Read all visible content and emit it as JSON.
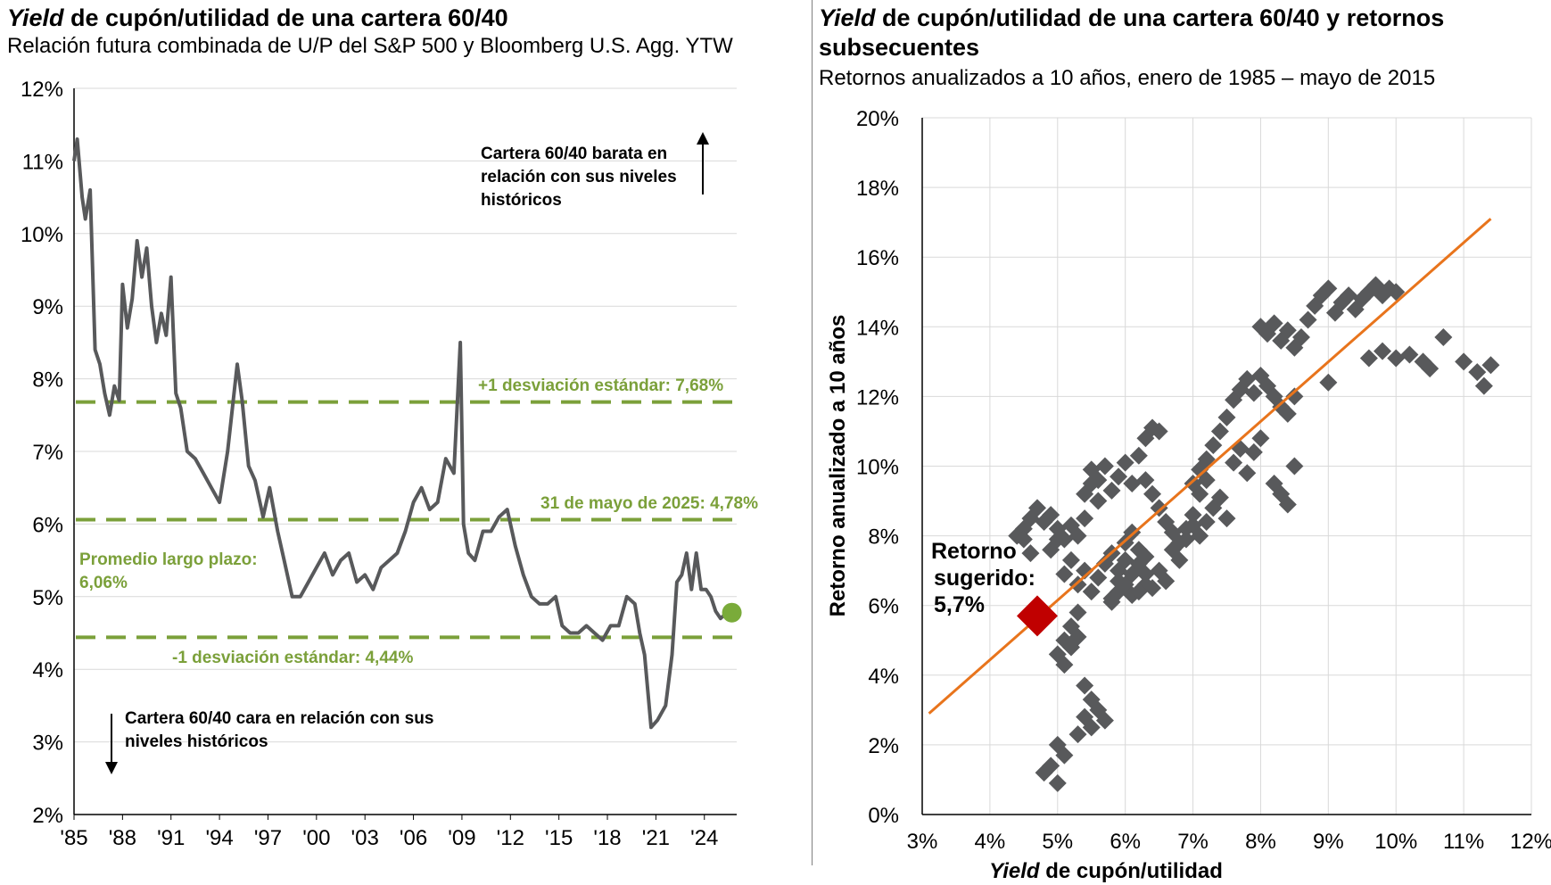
{
  "left_chart": {
    "title_italic": "Yield",
    "title_rest": " de cupón/utilidad de una cartera 60/40",
    "subtitle": "Relación futura combinada de U/P del S&P 500 y Bloomberg U.S. Agg. YTW",
    "annotation_cheap": [
      "Cartera 60/40 barata en",
      "relación con sus niveles",
      "históricos"
    ],
    "annotation_expensive": [
      "Cartera 60/40 cara en relación con sus",
      "niveles históricos"
    ],
    "label_plus1": "+1 desviación estándar: 7,68%",
    "label_current": "31 de mayo de 2025: 4,78%",
    "label_avg": [
      "Promedio largo plazo:",
      "6,06%"
    ],
    "label_minus1": "-1 desviación estándar: 4,44%"
  },
  "right_chart": {
    "title_italic": "Yield",
    "title_rest": " de cupón/utilidad de una cartera 60/40 y retornos subsecuentes",
    "subtitle": "Retornos anualizados a 10 años, enero de 1985 – mayo de 2015",
    "ylabel": "Retorno anualizado a 10 años",
    "xlabel_italic": "Yield",
    "xlabel_rest": " de cupón/utilidad",
    "suggested_label": [
      "Retorno",
      "sugerido:",
      "5,7%"
    ]
  },
  "colors": {
    "line": "#58595b",
    "green": "#7ba03a",
    "orange": "#e8741c",
    "red": "#c00000",
    "scatter": "#58595b"
  },
  "chart_data": [
    {
      "type": "line",
      "title": "Yield de cupón/utilidad de una cartera 60/40",
      "subtitle": "Relación futura combinada de U/P del S&P 500 y Bloomberg U.S. Agg. YTW",
      "x_tick_labels": [
        "'85",
        "'88",
        "'91",
        "'94",
        "'97",
        "'00",
        "'03",
        "'06",
        "'09",
        "'12",
        "'15",
        "'18",
        "'21",
        "'24"
      ],
      "x_tick_years": [
        1985,
        1988,
        1991,
        1994,
        1997,
        2000,
        2003,
        2006,
        2009,
        2012,
        2015,
        2018,
        2021,
        2024
      ],
      "xlim": [
        1985,
        2026
      ],
      "y_tick_labels": [
        "2%",
        "3%",
        "4%",
        "5%",
        "6%",
        "7%",
        "8%",
        "9%",
        "10%",
        "11%",
        "12%"
      ],
      "ylim": [
        2,
        12
      ],
      "grid": true,
      "series": [
        {
          "x": [
            1985.0,
            1985.2,
            1985.5,
            1985.7,
            1986.0,
            1986.3,
            1986.6,
            1986.9,
            1987.2,
            1987.5,
            1987.8,
            1988.0,
            1988.3,
            1988.6,
            1988.9,
            1989.2,
            1989.5,
            1989.8,
            1990.1,
            1990.4,
            1990.7,
            1991.0,
            1991.3,
            1991.6,
            1992.0,
            1992.5,
            1993.0,
            1993.5,
            1994.0,
            1994.5,
            1994.8,
            1995.1,
            1995.4,
            1995.8,
            1996.2,
            1996.7,
            1997.1,
            1997.6,
            1998.0,
            1998.5,
            1999.0,
            1999.5,
            2000.0,
            2000.5,
            2001.0,
            2001.5,
            2002.0,
            2002.5,
            2003.0,
            2003.5,
            2004.0,
            2004.5,
            2005.0,
            2005.5,
            2006.0,
            2006.5,
            2007.0,
            2007.5,
            2008.0,
            2008.5,
            2008.9,
            2009.1,
            2009.4,
            2009.8,
            2010.3,
            2010.8,
            2011.3,
            2011.8,
            2012.3,
            2012.8,
            2013.3,
            2013.8,
            2014.3,
            2014.8,
            2015.2,
            2015.7,
            2016.2,
            2016.7,
            2017.2,
            2017.7,
            2018.2,
            2018.7,
            2019.2,
            2019.7,
            2020.0,
            2020.3,
            2020.7,
            2021.1,
            2021.6,
            2022.0,
            2022.3,
            2022.6,
            2022.9,
            2023.2,
            2023.5,
            2023.8,
            2024.1,
            2024.4,
            2024.7,
            2025.0,
            2025.4
          ],
          "values": [
            11.0,
            11.3,
            10.5,
            10.2,
            10.6,
            8.4,
            8.2,
            7.8,
            7.5,
            7.9,
            7.7,
            9.3,
            8.7,
            9.1,
            9.9,
            9.4,
            9.8,
            9.0,
            8.5,
            8.9,
            8.6,
            9.4,
            7.8,
            7.6,
            7.0,
            6.9,
            6.7,
            6.5,
            6.3,
            7.0,
            7.6,
            8.2,
            7.7,
            6.8,
            6.6,
            6.1,
            6.5,
            5.9,
            5.5,
            5.0,
            5.0,
            5.2,
            5.4,
            5.6,
            5.3,
            5.5,
            5.6,
            5.2,
            5.3,
            5.1,
            5.4,
            5.5,
            5.6,
            5.9,
            6.3,
            6.5,
            6.2,
            6.3,
            6.9,
            6.7,
            8.5,
            6.0,
            5.6,
            5.5,
            5.9,
            5.9,
            6.1,
            6.2,
            5.7,
            5.3,
            5.0,
            4.9,
            4.9,
            5.0,
            4.6,
            4.5,
            4.5,
            4.6,
            4.5,
            4.4,
            4.6,
            4.6,
            5.0,
            4.9,
            4.5,
            4.2,
            3.2,
            3.3,
            3.5,
            4.2,
            5.2,
            5.3,
            5.6,
            5.1,
            5.6,
            5.1,
            5.1,
            5.0,
            4.8,
            4.7,
            4.78
          ]
        }
      ],
      "reference_lines": [
        {
          "name": "+1 desviación estándar",
          "value": 7.68
        },
        {
          "name": "Promedio largo plazo",
          "value": 6.06
        },
        {
          "name": "-1 desviación estándar",
          "value": 4.44
        }
      ],
      "current_point": {
        "date": "31 de mayo de 2025",
        "value": 4.78
      }
    },
    {
      "type": "scatter",
      "title": "Yield de cupón/utilidad de una cartera 60/40 y retornos subsecuentes",
      "subtitle": "Retornos anualizados a 10 años, enero de 1985 – mayo de 2015",
      "xlabel": "Yield de cupón/utilidad",
      "ylabel": "Retorno anualizado a 10 años",
      "x_tick_labels": [
        "3%",
        "4%",
        "5%",
        "6%",
        "7%",
        "8%",
        "9%",
        "10%",
        "11%",
        "12%"
      ],
      "xlim": [
        3,
        12
      ],
      "y_tick_labels": [
        "0%",
        "2%",
        "4%",
        "6%",
        "8%",
        "10%",
        "12%",
        "14%",
        "16%",
        "18%",
        "20%"
      ],
      "ylim": [
        0,
        20
      ],
      "grid": true,
      "points": [
        [
          4.5,
          8.2
        ],
        [
          4.6,
          8.5
        ],
        [
          4.7,
          8.8
        ],
        [
          4.8,
          8.4
        ],
        [
          4.9,
          8.6
        ],
        [
          5.0,
          8.2
        ],
        [
          5.1,
          7.9
        ],
        [
          5.2,
          8.3
        ],
        [
          5.3,
          8.0
        ],
        [
          5.4,
          8.5
        ],
        [
          4.9,
          7.6
        ],
        [
          5.0,
          7.9
        ],
        [
          5.1,
          6.9
        ],
        [
          5.2,
          7.3
        ],
        [
          5.3,
          6.6
        ],
        [
          5.4,
          7.0
        ],
        [
          5.5,
          6.4
        ],
        [
          5.6,
          6.8
        ],
        [
          5.7,
          7.2
        ],
        [
          5.8,
          7.5
        ],
        [
          5.9,
          7.0
        ],
        [
          6.0,
          6.6
        ],
        [
          6.1,
          6.9
        ],
        [
          6.2,
          7.2
        ],
        [
          6.3,
          6.6
        ],
        [
          6.0,
          7.8
        ],
        [
          6.1,
          8.1
        ],
        [
          6.2,
          7.6
        ],
        [
          5.8,
          6.1
        ],
        [
          5.9,
          6.4
        ],
        [
          5.5,
          9.9
        ],
        [
          5.6,
          9.6
        ],
        [
          5.7,
          10.0
        ],
        [
          5.8,
          9.3
        ],
        [
          5.9,
          9.7
        ],
        [
          6.0,
          10.1
        ],
        [
          6.1,
          9.5
        ],
        [
          5.4,
          9.2
        ],
        [
          5.5,
          9.5
        ],
        [
          5.6,
          9.0
        ],
        [
          6.2,
          10.3
        ],
        [
          6.3,
          10.8
        ],
        [
          6.4,
          11.1
        ],
        [
          6.5,
          11.0
        ],
        [
          6.3,
          9.6
        ],
        [
          6.4,
          9.2
        ],
        [
          6.5,
          8.8
        ],
        [
          6.6,
          8.4
        ],
        [
          6.7,
          8.1
        ],
        [
          6.8,
          7.8
        ],
        [
          6.9,
          8.2
        ],
        [
          7.0,
          8.6
        ],
        [
          7.1,
          8.0
        ],
        [
          7.2,
          8.4
        ],
        [
          7.3,
          8.8
        ],
        [
          7.4,
          9.1
        ],
        [
          7.5,
          8.5
        ],
        [
          7.0,
          9.5
        ],
        [
          7.1,
          9.9
        ],
        [
          7.2,
          10.2
        ],
        [
          7.3,
          10.6
        ],
        [
          7.4,
          11.0
        ],
        [
          7.5,
          11.4
        ],
        [
          7.6,
          10.1
        ],
        [
          7.7,
          10.5
        ],
        [
          7.8,
          9.8
        ],
        [
          7.9,
          10.4
        ],
        [
          8.0,
          10.8
        ],
        [
          7.6,
          11.9
        ],
        [
          7.7,
          12.2
        ],
        [
          7.8,
          12.5
        ],
        [
          7.9,
          12.1
        ],
        [
          8.0,
          12.6
        ],
        [
          8.1,
          12.3
        ],
        [
          8.2,
          12.0
        ],
        [
          8.3,
          11.7
        ],
        [
          8.4,
          11.5
        ],
        [
          8.5,
          12.0
        ],
        [
          8.2,
          9.5
        ],
        [
          8.3,
          9.2
        ],
        [
          8.4,
          8.9
        ],
        [
          8.5,
          10.0
        ],
        [
          8.0,
          14.0
        ],
        [
          8.1,
          13.8
        ],
        [
          8.2,
          14.1
        ],
        [
          8.3,
          13.6
        ],
        [
          8.4,
          13.9
        ],
        [
          8.5,
          13.4
        ],
        [
          8.6,
          13.7
        ],
        [
          8.7,
          14.2
        ],
        [
          8.8,
          14.6
        ],
        [
          8.9,
          14.9
        ],
        [
          9.0,
          15.1
        ],
        [
          9.1,
          14.4
        ],
        [
          9.2,
          14.7
        ],
        [
          9.3,
          14.9
        ],
        [
          9.4,
          14.5
        ],
        [
          9.5,
          14.8
        ],
        [
          9.6,
          15.0
        ],
        [
          9.7,
          15.2
        ],
        [
          9.8,
          14.9
        ],
        [
          9.9,
          15.1
        ],
        [
          10.0,
          15.0
        ],
        [
          9.6,
          13.1
        ],
        [
          9.8,
          13.3
        ],
        [
          10.0,
          13.1
        ],
        [
          10.2,
          13.2
        ],
        [
          10.4,
          13.0
        ],
        [
          10.5,
          12.8
        ],
        [
          10.7,
          13.7
        ],
        [
          11.0,
          13.0
        ],
        [
          11.2,
          12.7
        ],
        [
          11.3,
          12.3
        ],
        [
          11.4,
          12.9
        ],
        [
          9.0,
          12.4
        ],
        [
          5.3,
          5.8
        ],
        [
          5.2,
          5.4
        ],
        [
          5.1,
          5.0
        ],
        [
          5.0,
          4.6
        ],
        [
          5.1,
          4.3
        ],
        [
          5.2,
          4.8
        ],
        [
          5.3,
          5.1
        ],
        [
          5.4,
          3.7
        ],
        [
          5.5,
          3.3
        ],
        [
          5.4,
          2.8
        ],
        [
          5.5,
          2.5
        ],
        [
          5.6,
          3.0
        ],
        [
          5.7,
          2.7
        ],
        [
          5.3,
          2.3
        ],
        [
          5.0,
          2.0
        ],
        [
          5.1,
          1.7
        ],
        [
          4.8,
          1.2
        ],
        [
          4.9,
          1.4
        ],
        [
          5.0,
          0.9
        ],
        [
          4.4,
          8.0
        ],
        [
          4.5,
          7.9
        ],
        [
          4.6,
          7.5
        ],
        [
          5.8,
          6.2
        ],
        [
          5.9,
          6.7
        ],
        [
          6.0,
          7.3
        ],
        [
          6.3,
          7.4
        ],
        [
          6.4,
          6.5
        ],
        [
          6.5,
          7.0
        ],
        [
          6.6,
          6.7
        ],
        [
          6.7,
          7.6
        ],
        [
          6.8,
          7.3
        ],
        [
          6.9,
          7.9
        ],
        [
          7.0,
          8.3
        ],
        [
          7.1,
          9.2
        ],
        [
          7.2,
          9.6
        ],
        [
          6.1,
          6.3
        ],
        [
          6.3,
          6.9
        ],
        [
          6.2,
          6.4
        ]
      ],
      "regression_line": {
        "x": [
          3.1,
          11.4
        ],
        "y": [
          2.9,
          17.1
        ]
      },
      "highlight_point": {
        "label": "Retorno sugerido: 5,7%",
        "x": 4.7,
        "y": 5.7
      }
    }
  ]
}
